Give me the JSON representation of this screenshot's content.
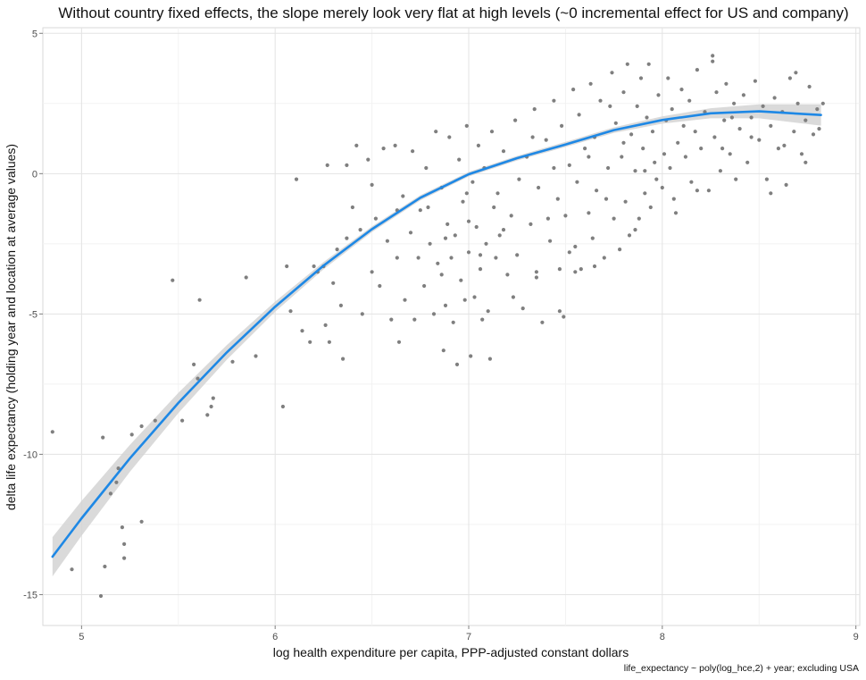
{
  "chart_data": {
    "type": "scatter",
    "title": "Without country fixed effects, the slope merely look very flat at high levels (~0 incremental effect for US and company)",
    "xlabel": "log health expenditure per capita, PPP-adjusted constant dollars",
    "ylabel": "delta life expectancy (holding year and location at average values)",
    "caption": "life_expectancy ~ poly(log_hce,2) + year; excluding USA",
    "xlim": [
      4.8,
      9.02
    ],
    "ylim": [
      -16.1,
      5.2
    ],
    "x_ticks": [
      5,
      6,
      7,
      8,
      9
    ],
    "x_tick_labels": [
      "5",
      "6",
      "7",
      "8",
      "9"
    ],
    "y_ticks": [
      -15,
      -10,
      -5,
      0,
      5
    ],
    "y_tick_labels": [
      "-15",
      "-10",
      "-5",
      "0",
      "5"
    ],
    "grid": true,
    "point_color": "#7f7f7f",
    "line_color": "#1e88e5",
    "band_color": "#d3d3d3",
    "scatter_series": {
      "name": "observations",
      "points": [
        [
          4.85,
          -9.2
        ],
        [
          4.95,
          -14.1
        ],
        [
          5.1,
          -15.05
        ],
        [
          5.12,
          -14.0
        ],
        [
          5.11,
          -9.4
        ],
        [
          5.15,
          -11.4
        ],
        [
          5.18,
          -11.0
        ],
        [
          5.19,
          -10.5
        ],
        [
          5.21,
          -12.6
        ],
        [
          5.22,
          -13.2
        ],
        [
          5.22,
          -13.7
        ],
        [
          5.26,
          -9.3
        ],
        [
          5.31,
          -9.0
        ],
        [
          5.31,
          -12.4
        ],
        [
          5.38,
          -8.8
        ],
        [
          5.47,
          -3.8
        ],
        [
          5.52,
          -8.8
        ],
        [
          5.58,
          -6.8
        ],
        [
          5.6,
          -7.3
        ],
        [
          5.61,
          -4.5
        ],
        [
          5.65,
          -8.6
        ],
        [
          5.67,
          -8.3
        ],
        [
          5.68,
          -8.0
        ],
        [
          5.78,
          -6.7
        ],
        [
          5.85,
          -3.7
        ],
        [
          5.9,
          -6.5
        ],
        [
          6.04,
          -8.3
        ],
        [
          6.06,
          -3.3
        ],
        [
          6.08,
          -4.9
        ],
        [
          6.11,
          -0.2
        ],
        [
          6.14,
          -5.6
        ],
        [
          6.18,
          -6.0
        ],
        [
          6.2,
          -3.3
        ],
        [
          6.22,
          -3.5
        ],
        [
          6.25,
          -3.3
        ],
        [
          6.26,
          -5.4
        ],
        [
          6.27,
          0.3
        ],
        [
          6.28,
          -6.0
        ],
        [
          6.3,
          -3.9
        ],
        [
          6.32,
          -2.7
        ],
        [
          6.34,
          -4.7
        ],
        [
          6.35,
          -6.6
        ],
        [
          6.37,
          0.3
        ],
        [
          6.4,
          -1.2
        ],
        [
          6.42,
          1.0
        ],
        [
          6.44,
          -2.0
        ],
        [
          6.45,
          -5.0
        ],
        [
          6.48,
          0.5
        ],
        [
          6.5,
          -3.5
        ],
        [
          6.52,
          -1.6
        ],
        [
          6.54,
          -4.0
        ],
        [
          6.56,
          0.9
        ],
        [
          6.58,
          -2.4
        ],
        [
          6.6,
          -5.2
        ],
        [
          6.62,
          1.0
        ],
        [
          6.63,
          -3.0
        ],
        [
          6.64,
          -6.0
        ],
        [
          6.66,
          -0.8
        ],
        [
          6.67,
          -4.5
        ],
        [
          6.7,
          -2.1
        ],
        [
          6.71,
          0.8
        ],
        [
          6.72,
          -5.2
        ],
        [
          6.74,
          -3.0
        ],
        [
          6.75,
          -1.3
        ],
        [
          6.77,
          -4.0
        ],
        [
          6.78,
          0.2
        ],
        [
          6.8,
          -2.5
        ],
        [
          6.82,
          -5.0
        ],
        [
          6.83,
          1.5
        ],
        [
          6.84,
          -3.2
        ],
        [
          6.86,
          -0.5
        ],
        [
          6.87,
          -6.3
        ],
        [
          6.88,
          -4.7
        ],
        [
          6.89,
          -1.8
        ],
        [
          6.9,
          1.3
        ],
        [
          6.91,
          -3.0
        ],
        [
          6.92,
          -5.3
        ],
        [
          6.93,
          -2.2
        ],
        [
          6.94,
          -6.8
        ],
        [
          6.95,
          0.5
        ],
        [
          6.96,
          -3.8
        ],
        [
          6.97,
          -1.0
        ],
        [
          6.98,
          -4.5
        ],
        [
          6.99,
          1.7
        ],
        [
          7.0,
          -2.8
        ],
        [
          7.01,
          -6.5
        ],
        [
          7.02,
          -0.3
        ],
        [
          7.03,
          -4.4
        ],
        [
          7.04,
          -1.9
        ],
        [
          7.05,
          1.0
        ],
        [
          7.06,
          -3.4
        ],
        [
          7.07,
          -5.2
        ],
        [
          7.08,
          0.2
        ],
        [
          7.09,
          -2.5
        ],
        [
          7.1,
          -4.9
        ],
        [
          7.11,
          -6.6
        ],
        [
          7.12,
          1.5
        ],
        [
          7.13,
          -1.2
        ],
        [
          7.14,
          -3.0
        ],
        [
          7.15,
          -0.7
        ],
        [
          7.16,
          -2.2
        ],
        [
          7.18,
          0.8
        ],
        [
          7.2,
          -3.6
        ],
        [
          7.22,
          -1.5
        ],
        [
          7.24,
          1.9
        ],
        [
          7.25,
          -2.9
        ],
        [
          7.26,
          -0.2
        ],
        [
          7.28,
          -4.8
        ],
        [
          7.3,
          0.6
        ],
        [
          7.32,
          -1.8
        ],
        [
          7.34,
          2.3
        ],
        [
          7.35,
          -3.5
        ],
        [
          7.36,
          -0.5
        ],
        [
          7.38,
          -5.3
        ],
        [
          7.4,
          1.2
        ],
        [
          7.42,
          -2.4
        ],
        [
          7.44,
          2.6
        ],
        [
          7.46,
          -0.9
        ],
        [
          7.47,
          -3.4
        ],
        [
          7.48,
          1.7
        ],
        [
          7.5,
          -1.5
        ],
        [
          7.52,
          0.3
        ],
        [
          7.54,
          3.0
        ],
        [
          7.55,
          -2.6
        ],
        [
          7.56,
          -0.3
        ],
        [
          7.57,
          2.1
        ],
        [
          7.58,
          -3.4
        ],
        [
          7.6,
          0.9
        ],
        [
          7.62,
          -1.4
        ],
        [
          7.63,
          3.2
        ],
        [
          7.64,
          -2.3
        ],
        [
          7.65,
          1.3
        ],
        [
          7.66,
          -0.6
        ],
        [
          7.68,
          2.6
        ],
        [
          7.7,
          -3.0
        ],
        [
          7.72,
          0.2
        ],
        [
          7.74,
          3.6
        ],
        [
          7.75,
          -1.6
        ],
        [
          7.76,
          1.8
        ],
        [
          7.78,
          -2.7
        ],
        [
          7.79,
          0.6
        ],
        [
          7.8,
          2.9
        ],
        [
          7.81,
          -1.0
        ],
        [
          7.82,
          3.9
        ],
        [
          7.83,
          -2.2
        ],
        [
          7.84,
          1.4
        ],
        [
          7.86,
          0.1
        ],
        [
          7.87,
          2.4
        ],
        [
          7.88,
          -1.6
        ],
        [
          7.89,
          3.4
        ],
        [
          7.9,
          0.9
        ],
        [
          7.91,
          -0.7
        ],
        [
          7.92,
          2.0
        ],
        [
          7.93,
          3.9
        ],
        [
          7.94,
          -1.2
        ],
        [
          7.95,
          1.5
        ],
        [
          7.96,
          0.4
        ],
        [
          7.98,
          2.8
        ],
        [
          8.0,
          -0.5
        ],
        [
          8.02,
          1.9
        ],
        [
          8.03,
          3.4
        ],
        [
          8.04,
          0.2
        ],
        [
          8.05,
          2.3
        ],
        [
          8.06,
          -0.9
        ],
        [
          8.08,
          1.1
        ],
        [
          8.1,
          3.0
        ],
        [
          8.12,
          0.6
        ],
        [
          8.14,
          2.6
        ],
        [
          8.15,
          -0.3
        ],
        [
          8.17,
          1.5
        ],
        [
          8.18,
          3.7
        ],
        [
          8.2,
          0.9
        ],
        [
          8.22,
          2.2
        ],
        [
          8.24,
          -0.6
        ],
        [
          8.26,
          4.2
        ],
        [
          8.27,
          1.3
        ],
        [
          8.28,
          2.9
        ],
        [
          8.3,
          0.1
        ],
        [
          8.32,
          1.9
        ],
        [
          8.33,
          3.2
        ],
        [
          8.35,
          0.7
        ],
        [
          8.37,
          2.5
        ],
        [
          8.38,
          -0.2
        ],
        [
          8.4,
          1.6
        ],
        [
          8.42,
          2.8
        ],
        [
          8.44,
          0.4
        ],
        [
          8.46,
          2.0
        ],
        [
          8.48,
          3.3
        ],
        [
          8.5,
          1.2
        ],
        [
          8.52,
          2.4
        ],
        [
          8.54,
          -0.2
        ],
        [
          8.56,
          1.7
        ],
        [
          8.58,
          2.7
        ],
        [
          8.6,
          0.9
        ],
        [
          8.62,
          2.2
        ],
        [
          8.64,
          -0.4
        ],
        [
          8.66,
          3.4
        ],
        [
          8.68,
          1.5
        ],
        [
          8.7,
          2.5
        ],
        [
          8.72,
          0.7
        ],
        [
          8.74,
          1.9
        ],
        [
          8.76,
          3.1
        ],
        [
          8.78,
          1.4
        ],
        [
          8.8,
          2.3
        ],
        [
          8.81,
          1.6
        ],
        [
          8.83,
          2.5
        ],
        [
          8.69,
          3.6
        ],
        [
          8.56,
          -0.7
        ],
        [
          8.74,
          0.4
        ],
        [
          8.26,
          4.0
        ],
        [
          7.47,
          -4.9
        ],
        [
          7.49,
          -5.1
        ],
        [
          7.55,
          -3.5
        ],
        [
          7.35,
          -3.7
        ],
        [
          7.23,
          -4.4
        ],
        [
          7.0,
          -1.7
        ],
        [
          6.88,
          -2.3
        ],
        [
          6.79,
          -1.2
        ],
        [
          7.65,
          -3.3
        ],
        [
          7.86,
          -2.0
        ],
        [
          7.73,
          2.4
        ],
        [
          8.11,
          1.7
        ],
        [
          8.36,
          2.0
        ],
        [
          8.46,
          1.3
        ],
        [
          8.18,
          -0.6
        ],
        [
          8.63,
          1.0
        ],
        [
          8.07,
          -1.4
        ],
        [
          7.91,
          0.1
        ],
        [
          7.41,
          -1.6
        ],
        [
          6.99,
          -0.7
        ],
        [
          7.52,
          -2.8
        ],
        [
          7.97,
          -0.2
        ],
        [
          7.33,
          1.3
        ],
        [
          7.62,
          0.6
        ],
        [
          7.8,
          1.1
        ],
        [
          8.31,
          0.9
        ],
        [
          7.06,
          -2.9
        ],
        [
          6.86,
          -3.6
        ],
        [
          6.63,
          -1.3
        ],
        [
          6.37,
          -2.3
        ],
        [
          6.5,
          -0.4
        ],
        [
          7.18,
          -2.0
        ],
        [
          7.44,
          0.2
        ],
        [
          7.71,
          -0.9
        ],
        [
          8.01,
          0.7
        ]
      ]
    },
    "fit_series": {
      "name": "quadratic fit",
      "x": [
        4.85,
        5.0,
        5.25,
        5.5,
        5.75,
        6.0,
        6.25,
        6.5,
        6.75,
        7.0,
        7.25,
        7.5,
        7.75,
        8.0,
        8.25,
        8.5,
        8.82
      ],
      "y": [
        -13.65,
        -12.28,
        -10.14,
        -8.17,
        -6.37,
        -4.74,
        -3.28,
        -1.98,
        -0.86,
        -0.02,
        0.55,
        1.04,
        1.55,
        1.91,
        2.15,
        2.22,
        2.09
      ],
      "band_halfwidth": [
        0.7,
        0.62,
        0.48,
        0.36,
        0.26,
        0.18,
        0.13,
        0.1,
        0.09,
        0.08,
        0.08,
        0.09,
        0.1,
        0.13,
        0.18,
        0.25,
        0.38
      ]
    }
  }
}
